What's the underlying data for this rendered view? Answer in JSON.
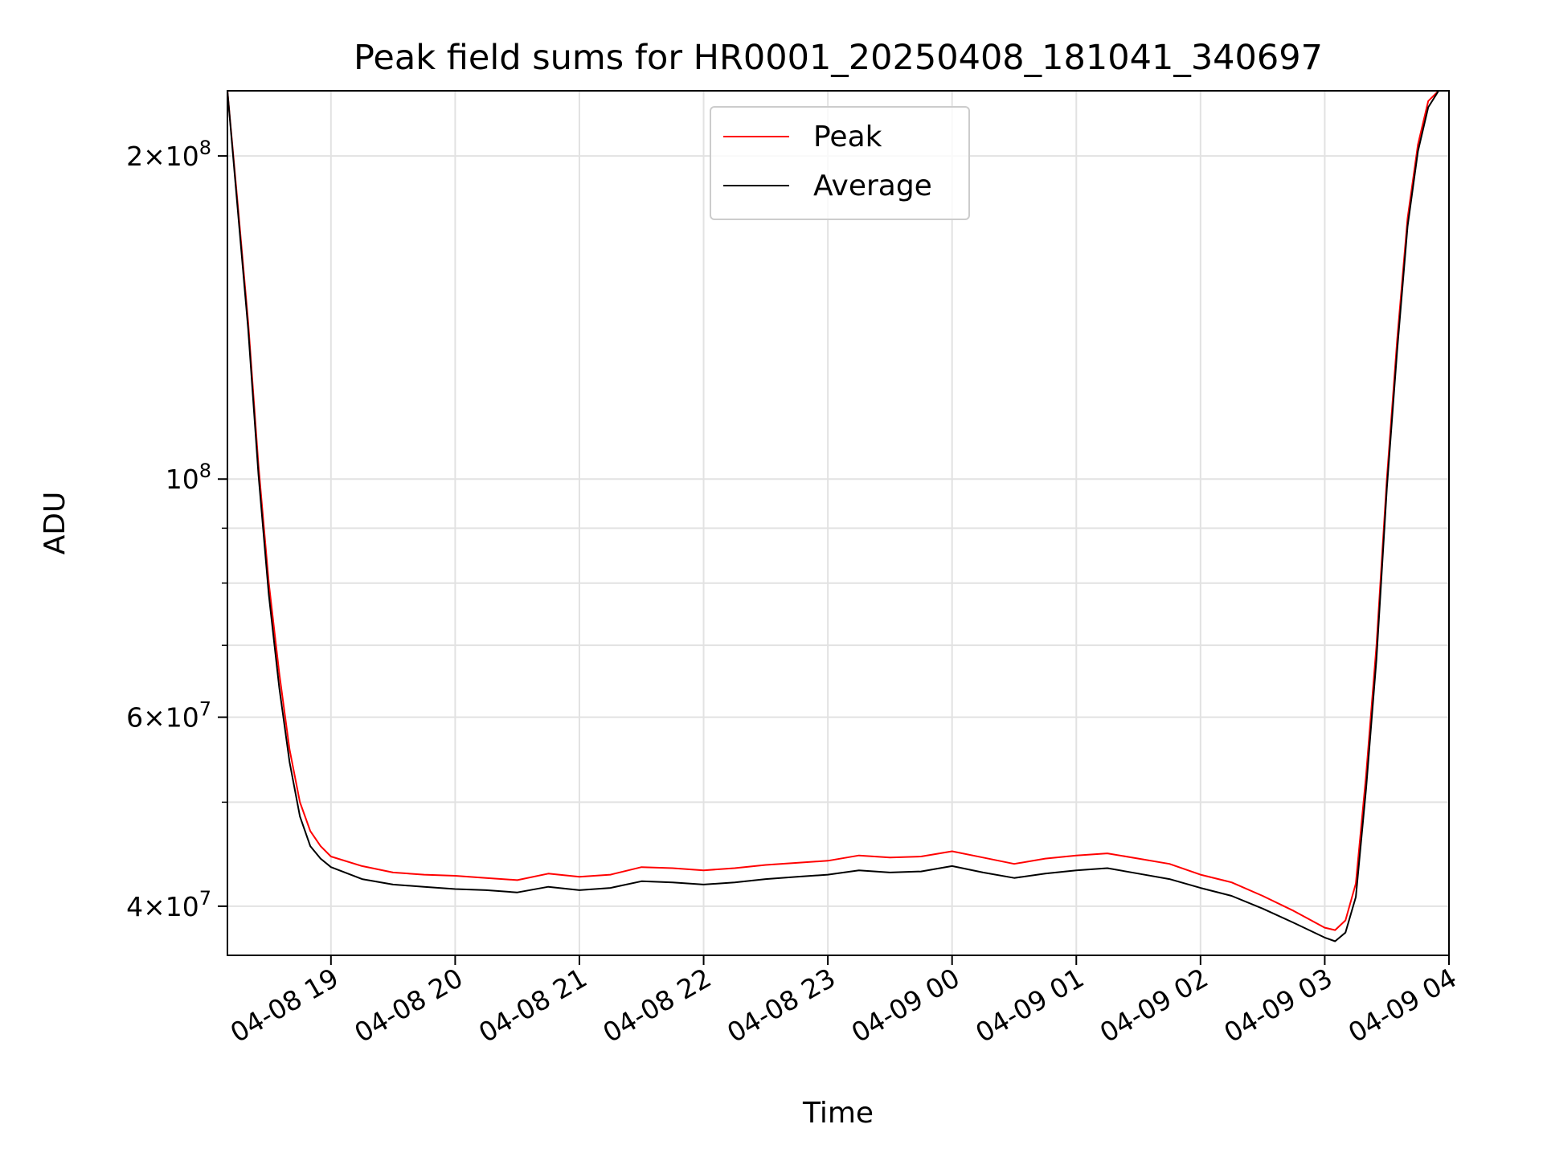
{
  "chart_data": {
    "type": "line",
    "title": "Peak field sums for HR0001_20250408_181041_340697",
    "xlabel": "Time",
    "ylabel": "ADU",
    "yscale": "log",
    "grid": true,
    "legend_position": "top-center",
    "xlim": [
      "2025-04-08 18:10",
      "2025-04-09 04:00"
    ],
    "ylim": [
      36000000,
      230000000
    ],
    "x_ticks": [
      "04-08 19",
      "04-08 20",
      "04-08 21",
      "04-08 22",
      "04-08 23",
      "04-09 00",
      "04-09 01",
      "04-09 02",
      "04-09 03",
      "04-09 04"
    ],
    "y_ticks": [
      {
        "value": 40000000,
        "base": "4",
        "exp": "7"
      },
      {
        "value": 60000000,
        "base": "6",
        "exp": "7"
      },
      {
        "value": 100000000,
        "base": "10",
        "exp": "8"
      },
      {
        "value": 200000000,
        "base": "2",
        "exp": "8"
      }
    ],
    "y_minor_ticks": [
      50000000,
      70000000,
      80000000,
      90000000
    ],
    "x": [
      "2025-04-08 18:10",
      "2025-04-08 18:15",
      "2025-04-08 18:20",
      "2025-04-08 18:25",
      "2025-04-08 18:30",
      "2025-04-08 18:35",
      "2025-04-08 18:40",
      "2025-04-08 18:45",
      "2025-04-08 18:50",
      "2025-04-08 18:55",
      "2025-04-08 19:00",
      "2025-04-08 19:15",
      "2025-04-08 19:30",
      "2025-04-08 19:45",
      "2025-04-08 20:00",
      "2025-04-08 20:15",
      "2025-04-08 20:30",
      "2025-04-08 20:45",
      "2025-04-08 21:00",
      "2025-04-08 21:15",
      "2025-04-08 21:30",
      "2025-04-08 21:45",
      "2025-04-08 22:00",
      "2025-04-08 22:15",
      "2025-04-08 22:30",
      "2025-04-08 22:45",
      "2025-04-08 23:00",
      "2025-04-08 23:15",
      "2025-04-08 23:30",
      "2025-04-08 23:45",
      "2025-04-09 00:00",
      "2025-04-09 00:15",
      "2025-04-09 00:30",
      "2025-04-09 00:45",
      "2025-04-09 01:00",
      "2025-04-09 01:15",
      "2025-04-09 01:30",
      "2025-04-09 01:45",
      "2025-04-09 02:00",
      "2025-04-09 02:15",
      "2025-04-09 02:30",
      "2025-04-09 02:45",
      "2025-04-09 03:00",
      "2025-04-09 03:05",
      "2025-04-09 03:10",
      "2025-04-09 03:15",
      "2025-04-09 03:20",
      "2025-04-09 03:25",
      "2025-04-09 03:30",
      "2025-04-09 03:35",
      "2025-04-09 03:40",
      "2025-04-09 03:45",
      "2025-04-09 03:50",
      "2025-04-09 03:55"
    ],
    "series": [
      {
        "name": "Peak",
        "color": "#ff0000",
        "values": [
          230000000,
          180000000,
          140000000,
          103000000,
          80000000,
          66000000,
          56000000,
          50000000,
          47000000,
          45500000,
          44500000,
          43600000,
          43000000,
          42800000,
          42700000,
          42500000,
          42300000,
          42900000,
          42600000,
          42800000,
          43500000,
          43400000,
          43200000,
          43400000,
          43700000,
          43900000,
          44100000,
          44600000,
          44400000,
          44500000,
          45000000,
          44400000,
          43800000,
          44300000,
          44600000,
          44800000,
          44300000,
          43800000,
          42800000,
          42100000,
          40900000,
          39600000,
          38200000,
          38000000,
          38800000,
          42000000,
          53000000,
          70000000,
          100000000,
          135000000,
          175000000,
          205000000,
          225000000,
          230000000
        ]
      },
      {
        "name": "Average",
        "color": "#000000",
        "values": [
          230000000,
          178000000,
          138000000,
          101000000,
          78000000,
          64000000,
          54500000,
          48500000,
          45500000,
          44300000,
          43500000,
          42400000,
          41900000,
          41700000,
          41500000,
          41400000,
          41200000,
          41700000,
          41400000,
          41600000,
          42200000,
          42100000,
          41900000,
          42100000,
          42400000,
          42600000,
          42800000,
          43200000,
          43000000,
          43100000,
          43600000,
          43000000,
          42500000,
          42900000,
          43200000,
          43400000,
          42900000,
          42400000,
          41600000,
          40900000,
          39800000,
          38600000,
          37400000,
          37100000,
          37800000,
          40800000,
          51500000,
          68000000,
          98000000,
          132000000,
          172000000,
          202000000,
          222000000,
          230000000
        ]
      }
    ]
  }
}
